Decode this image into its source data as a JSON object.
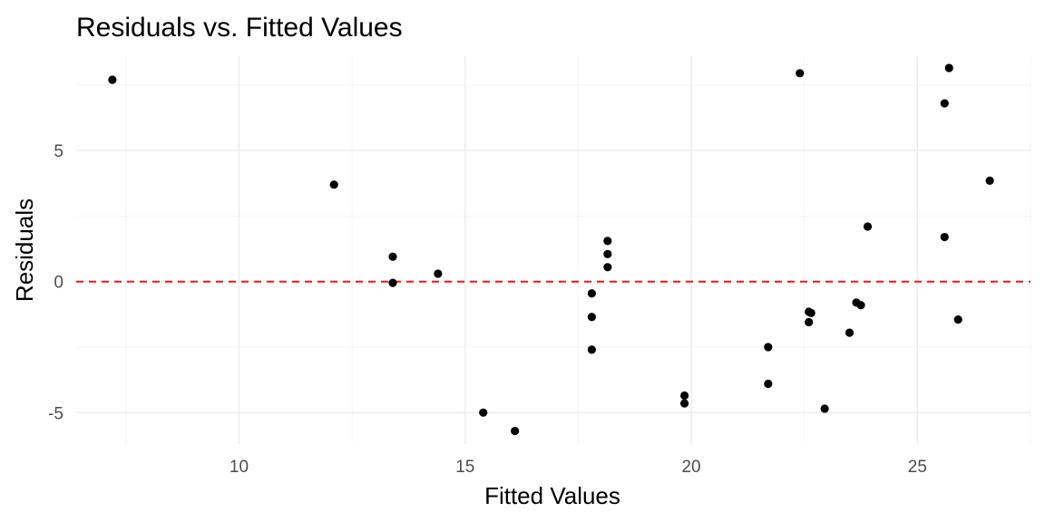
{
  "chart_data": {
    "type": "scatter",
    "title": "Residuals vs. Fitted Values",
    "xlabel": "Fitted Values",
    "ylabel": "Residuals",
    "xlim": [
      6.4,
      27.5
    ],
    "ylim": [
      -6.2,
      8.6
    ],
    "x_ticks": [
      10,
      15,
      20,
      25
    ],
    "y_ticks": [
      -5,
      0,
      5
    ],
    "x_tick_labels": [
      "10",
      "15",
      "20",
      "25"
    ],
    "y_tick_labels": [
      "-5",
      "0",
      "5"
    ],
    "x_minor_ticks": [
      7.5,
      12.5,
      17.5,
      22.5,
      27.5
    ],
    "y_minor_ticks": [
      -2.5,
      2.5,
      7.5
    ],
    "grid": true,
    "point_color": "#000000",
    "reference_line": {
      "y": 0,
      "color": "#e31a1c",
      "style": "dashed"
    },
    "points": [
      {
        "x": 7.2,
        "y": 7.7
      },
      {
        "x": 12.1,
        "y": 3.7
      },
      {
        "x": 13.4,
        "y": 0.95
      },
      {
        "x": 13.4,
        "y": -0.05
      },
      {
        "x": 14.4,
        "y": 0.3
      },
      {
        "x": 15.4,
        "y": -5.0
      },
      {
        "x": 16.1,
        "y": -5.7
      },
      {
        "x": 17.8,
        "y": -0.45
      },
      {
        "x": 17.8,
        "y": -1.35
      },
      {
        "x": 17.8,
        "y": -2.6
      },
      {
        "x": 18.15,
        "y": 1.55
      },
      {
        "x": 18.15,
        "y": 1.05
      },
      {
        "x": 18.15,
        "y": 0.55
      },
      {
        "x": 19.85,
        "y": -4.35
      },
      {
        "x": 19.85,
        "y": -4.65
      },
      {
        "x": 21.7,
        "y": -2.5
      },
      {
        "x": 21.7,
        "y": -3.9
      },
      {
        "x": 22.4,
        "y": 7.95
      },
      {
        "x": 22.6,
        "y": -1.15
      },
      {
        "x": 22.65,
        "y": -1.2
      },
      {
        "x": 22.6,
        "y": -1.55
      },
      {
        "x": 22.95,
        "y": -4.85
      },
      {
        "x": 23.5,
        "y": -1.95
      },
      {
        "x": 23.65,
        "y": -0.8
      },
      {
        "x": 23.75,
        "y": -0.9
      },
      {
        "x": 23.9,
        "y": 2.1
      },
      {
        "x": 25.6,
        "y": 6.8
      },
      {
        "x": 25.6,
        "y": 1.7
      },
      {
        "x": 25.7,
        "y": 8.15
      },
      {
        "x": 25.9,
        "y": -1.45
      },
      {
        "x": 26.6,
        "y": 3.85
      }
    ]
  }
}
